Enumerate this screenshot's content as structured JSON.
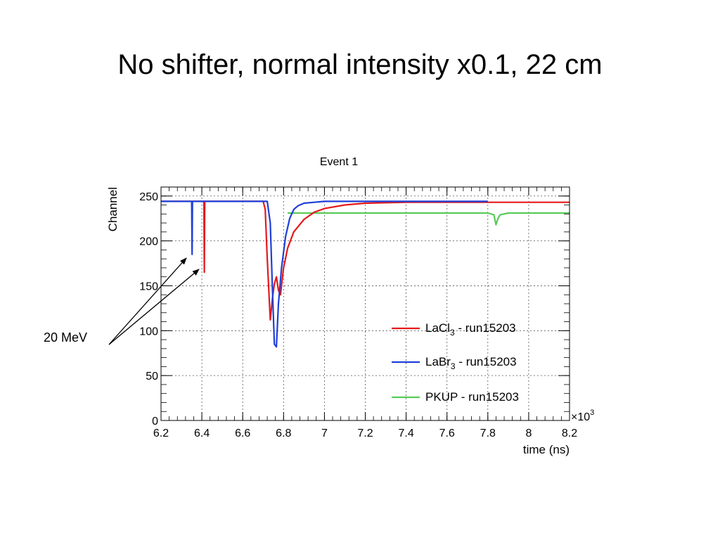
{
  "slide": {
    "title": "No shifter, normal intensity x0.1, 22 cm",
    "annotation": "20 MeV"
  },
  "chart_data": {
    "type": "line",
    "title": "Event 1",
    "xlabel": "time (ns)",
    "ylabel": "Channel",
    "x_multiplier_label": "×10",
    "x_multiplier_exp": "3",
    "xlim": [
      6.2,
      8.2
    ],
    "ylim": [
      0,
      260
    ],
    "x_ticks": [
      6.2,
      6.4,
      6.6,
      6.8,
      7,
      7.2,
      7.4,
      7.6,
      7.8,
      8,
      8.2
    ],
    "x_tick_labels": [
      "6.2",
      "6.4",
      "6.6",
      "6.8",
      "7",
      "7.2",
      "7.4",
      "7.6",
      "7.8",
      "8",
      "8.2"
    ],
    "y_ticks": [
      0,
      50,
      100,
      150,
      200,
      250
    ],
    "y_tick_labels": [
      "0",
      "50",
      "100",
      "150",
      "200",
      "250"
    ],
    "grid": true,
    "legend_position": "bottom-right",
    "series": [
      {
        "name": "LaCl",
        "name_sub": "3",
        "name_suffix": " - run15203",
        "color": "#e41a1c",
        "x": [
          6.2,
          6.41,
          6.412,
          6.414,
          6.42,
          6.7,
          6.71,
          6.72,
          6.735,
          6.745,
          6.755,
          6.765,
          6.775,
          6.785,
          6.8,
          6.82,
          6.85,
          6.9,
          6.95,
          7.0,
          7.1,
          7.2,
          7.4,
          7.6,
          7.8,
          8.0,
          8.2
        ],
        "y": [
          244,
          244,
          165,
          244,
          244,
          244,
          235,
          180,
          112,
          135,
          152,
          160,
          145,
          140,
          170,
          192,
          210,
          224,
          232,
          236,
          240,
          242,
          243,
          243,
          243,
          243,
          243
        ]
      },
      {
        "name": "LaBr",
        "name_sub": "3",
        "name_suffix": " - run15203",
        "color": "#1f3fd8",
        "x": [
          6.2,
          6.35,
          6.352,
          6.354,
          6.36,
          6.72,
          6.735,
          6.745,
          6.755,
          6.765,
          6.775,
          6.79,
          6.81,
          6.83,
          6.85,
          6.87,
          6.9,
          6.95,
          7.0,
          7.1,
          7.4,
          7.8
        ],
        "y": [
          244,
          244,
          185,
          244,
          244,
          244,
          220,
          150,
          85,
          82,
          130,
          170,
          205,
          225,
          235,
          239,
          242,
          243,
          244,
          244,
          244,
          244
        ]
      },
      {
        "name": "PKUP",
        "name_sub": "",
        "name_suffix": " - run15203",
        "color": "#58cc58",
        "x": [
          6.82,
          7.0,
          7.4,
          7.8,
          7.83,
          7.84,
          7.85,
          7.86,
          7.9,
          8.0,
          8.2
        ],
        "y": [
          231,
          231,
          231,
          231,
          229,
          218,
          225,
          229,
          231,
          231,
          231
        ]
      }
    ]
  }
}
